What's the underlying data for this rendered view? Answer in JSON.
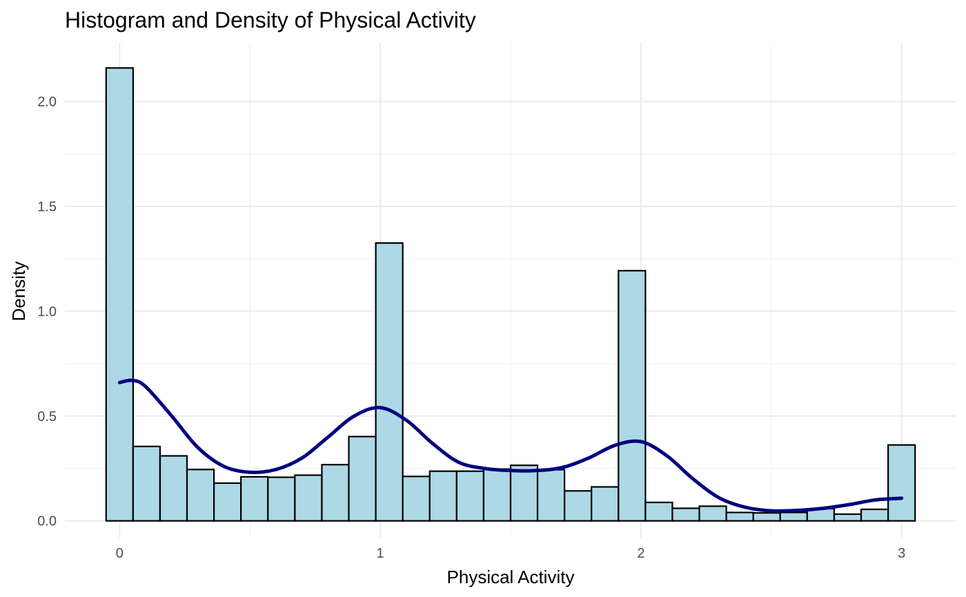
{
  "chart_data": {
    "type": "bar",
    "title": "Histogram and Density of Physical Activity",
    "xlabel": "Physical Activity",
    "ylabel": "Density",
    "xlim": [
      -0.21,
      3.21
    ],
    "ylim": [
      -0.08,
      2.28
    ],
    "x_ticks": [
      0,
      1,
      2,
      3
    ],
    "x_tick_labels": [
      "0",
      "1",
      "2",
      "3"
    ],
    "y_ticks": [
      0.0,
      0.5,
      1.0,
      1.5,
      2.0
    ],
    "y_tick_labels": [
      "0.0",
      "0.5",
      "1.0",
      "1.5",
      "2.0"
    ],
    "grid": true,
    "histogram": {
      "bin_width": 0.1034,
      "bin_starts": [
        -0.0517,
        0.0517,
        0.1552,
        0.2586,
        0.3621,
        0.4655,
        0.569,
        0.6724,
        0.7759,
        0.8793,
        0.9828,
        1.0862,
        1.1897,
        1.2931,
        1.3966,
        1.5,
        1.6034,
        1.7069,
        1.8103,
        1.9138,
        2.0172,
        2.1207,
        2.2241,
        2.3276,
        2.431,
        2.5345,
        2.6379,
        2.7414,
        2.8448,
        2.9483
      ],
      "values": [
        2.16,
        0.355,
        0.31,
        0.245,
        0.18,
        0.21,
        0.208,
        0.218,
        0.268,
        0.402,
        1.325,
        0.212,
        0.237,
        0.237,
        0.247,
        0.265,
        0.244,
        0.143,
        0.162,
        1.193,
        0.088,
        0.06,
        0.07,
        0.04,
        0.038,
        0.04,
        0.058,
        0.032,
        0.055,
        0.362
      ],
      "fill": "#add8e6",
      "stroke": "#000000"
    },
    "density": {
      "x": [
        0.0,
        0.05,
        0.1,
        0.2,
        0.3,
        0.4,
        0.5,
        0.6,
        0.7,
        0.8,
        0.9,
        1.0,
        1.1,
        1.2,
        1.3,
        1.4,
        1.5,
        1.6,
        1.7,
        1.8,
        1.9,
        2.0,
        2.1,
        2.2,
        2.3,
        2.4,
        2.5,
        2.6,
        2.7,
        2.8,
        2.9,
        3.0
      ],
      "y": [
        0.66,
        0.67,
        0.64,
        0.5,
        0.35,
        0.26,
        0.232,
        0.245,
        0.3,
        0.4,
        0.5,
        0.54,
        0.48,
        0.37,
        0.28,
        0.25,
        0.24,
        0.24,
        0.255,
        0.3,
        0.36,
        0.378,
        0.31,
        0.2,
        0.11,
        0.065,
        0.048,
        0.05,
        0.06,
        0.078,
        0.1,
        0.108
      ],
      "color": "#00007f"
    }
  }
}
